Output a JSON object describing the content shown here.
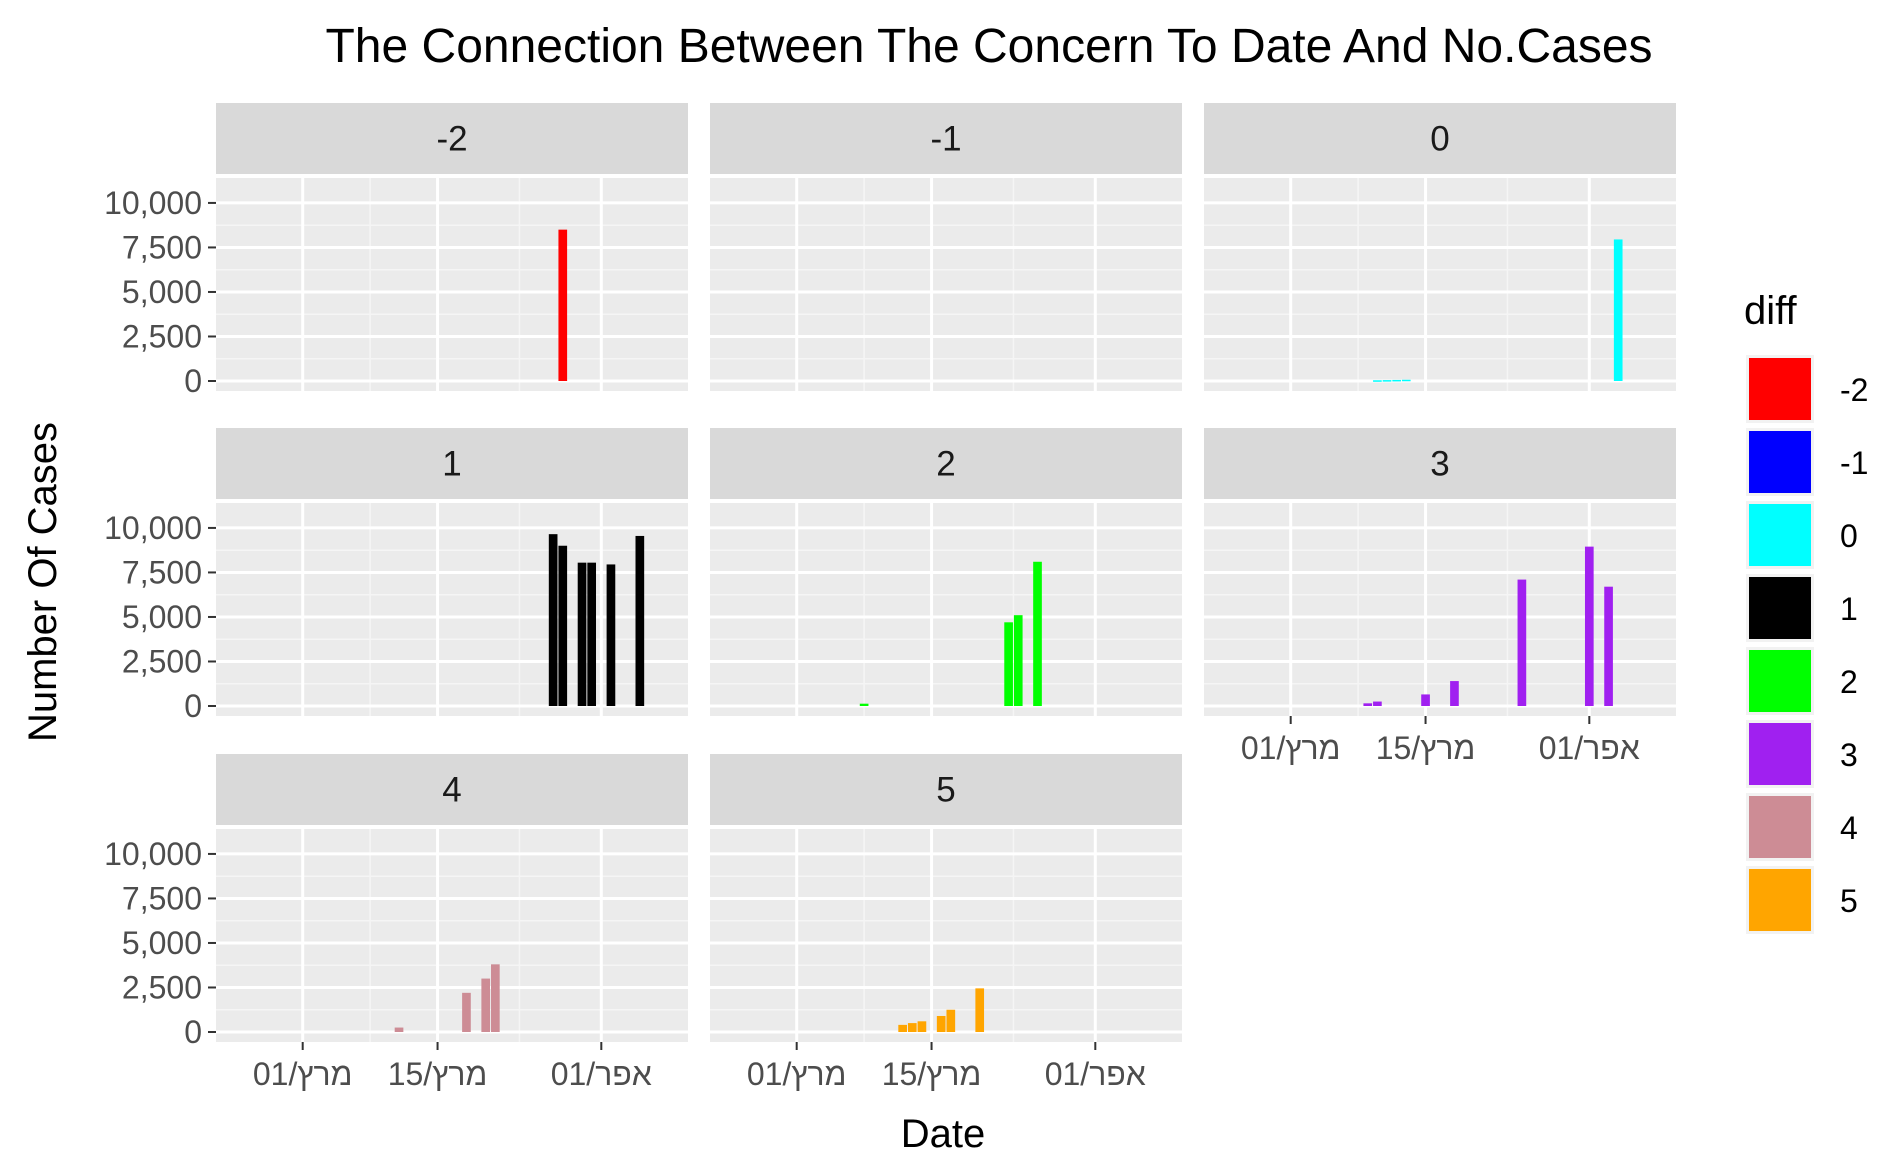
{
  "chart_data": {
    "type": "bar",
    "title": "The Connection Between The Concern To Date And No.Cases",
    "xlabel": "Date",
    "ylabel": "Number Of Cases",
    "ylim": [
      0,
      10000
    ],
    "yticks": [
      0,
      2500,
      5000,
      7500,
      10000
    ],
    "ytick_labels": [
      "0",
      "2,500",
      "5,000",
      "7,500",
      "10,000"
    ],
    "xlim": [
      "2020-02-21",
      "2020-04-10"
    ],
    "xticks": [
      "2020-03-01",
      "2020-03-15",
      "2020-04-01"
    ],
    "xtick_labels": [
      "01/מרץ",
      "15/מרץ",
      "01/אפר"
    ],
    "grid": true,
    "legend": {
      "title": "diff",
      "position": "right",
      "entries": [
        {
          "label": "-2",
          "color": "#FF0000"
        },
        {
          "label": "-1",
          "color": "#0000FF"
        },
        {
          "label": "0",
          "color": "#00FFFF"
        },
        {
          "label": "1",
          "color": "#000000"
        },
        {
          "label": "2",
          "color": "#00FF00"
        },
        {
          "label": "3",
          "color": "#A020F0"
        },
        {
          "label": "4",
          "color": "#CD8C95"
        },
        {
          "label": "5",
          "color": "#FFA500"
        }
      ]
    },
    "panels": [
      {
        "label": "-2",
        "color": "#FF0000",
        "points": [
          {
            "x": "2020-03-28",
            "y": 8500
          }
        ]
      },
      {
        "label": "-1",
        "color": "#0000FF",
        "points": []
      },
      {
        "label": "0",
        "color": "#00FFFF",
        "points": [
          {
            "x": "2020-03-10",
            "y": 40
          },
          {
            "x": "2020-03-11",
            "y": 50
          },
          {
            "x": "2020-03-12",
            "y": 60
          },
          {
            "x": "2020-03-13",
            "y": 70
          },
          {
            "x": "2020-04-04",
            "y": 7950
          }
        ]
      },
      {
        "label": "1",
        "color": "#000000",
        "points": [
          {
            "x": "2020-03-27",
            "y": 9650
          },
          {
            "x": "2020-03-28",
            "y": 9000
          },
          {
            "x": "2020-03-30",
            "y": 8050
          },
          {
            "x": "2020-03-31",
            "y": 8050
          },
          {
            "x": "2020-04-02",
            "y": 7950
          },
          {
            "x": "2020-04-05",
            "y": 9550
          }
        ]
      },
      {
        "label": "2",
        "color": "#00FF00",
        "points": [
          {
            "x": "2020-03-08",
            "y": 130
          },
          {
            "x": "2020-03-23",
            "y": 4700
          },
          {
            "x": "2020-03-24",
            "y": 5100
          },
          {
            "x": "2020-03-26",
            "y": 8100
          }
        ]
      },
      {
        "label": "3",
        "color": "#A020F0",
        "points": [
          {
            "x": "2020-03-09",
            "y": 150
          },
          {
            "x": "2020-03-10",
            "y": 250
          },
          {
            "x": "2020-03-15",
            "y": 650
          },
          {
            "x": "2020-03-18",
            "y": 1400
          },
          {
            "x": "2020-03-25",
            "y": 7100
          },
          {
            "x": "2020-04-01",
            "y": 8950
          },
          {
            "x": "2020-04-03",
            "y": 6700
          }
        ]
      },
      {
        "label": "4",
        "color": "#CD8C95",
        "points": [
          {
            "x": "2020-03-11",
            "y": 250
          },
          {
            "x": "2020-03-18",
            "y": 2200
          },
          {
            "x": "2020-03-20",
            "y": 3000
          },
          {
            "x": "2020-03-21",
            "y": 3800
          }
        ]
      },
      {
        "label": "5",
        "color": "#FFA500",
        "points": [
          {
            "x": "2020-03-12",
            "y": 400
          },
          {
            "x": "2020-03-13",
            "y": 500
          },
          {
            "x": "2020-03-14",
            "y": 600
          },
          {
            "x": "2020-03-16",
            "y": 900
          },
          {
            "x": "2020-03-17",
            "y": 1250
          },
          {
            "x": "2020-03-20",
            "y": 2450
          }
        ]
      }
    ]
  }
}
